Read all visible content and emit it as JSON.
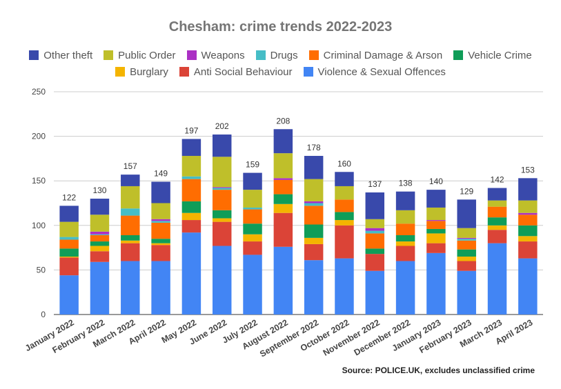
{
  "chart_data": {
    "type": "bar",
    "stacked": true,
    "title": "Chesham: crime trends 2022-2023",
    "categories": [
      "January 2022",
      "February 2022",
      "March 2022",
      "April 2022",
      "May 2022",
      "June 2022",
      "July 2022",
      "August 2022",
      "September 2022",
      "October 2022",
      "November 2022",
      "December 2022",
      "January 2023",
      "February 2023",
      "March 2023",
      "April 2023"
    ],
    "ylim": [
      0,
      250
    ],
    "yticks": [
      "0",
      "50",
      "100",
      "150",
      "200",
      "250"
    ],
    "grid": true,
    "legend_position": "top",
    "totals": [
      122,
      130,
      157,
      149,
      197,
      202,
      159,
      208,
      178,
      160,
      137,
      138,
      140,
      129,
      142,
      153
    ],
    "series": [
      {
        "name": "Violence & Sexual Offences",
        "color": "#4285f4",
        "values": [
          44,
          59,
          60,
          60,
          92,
          77,
          67,
          76,
          61,
          63,
          49,
          60,
          69,
          49,
          80,
          63
        ]
      },
      {
        "name": "Anti Social Behaviour",
        "color": "#db4437",
        "values": [
          20,
          12,
          20,
          18,
          14,
          27,
          15,
          38,
          18,
          37,
          19,
          17,
          11,
          11,
          15,
          19
        ]
      },
      {
        "name": "Burglary",
        "color": "#f4b400",
        "values": [
          1,
          6,
          3,
          2,
          8,
          4,
          8,
          10,
          7,
          6,
          0,
          5,
          11,
          5,
          5,
          6
        ]
      },
      {
        "name": "Vehicle Crime",
        "color": "#0f9d58",
        "values": [
          9,
          5,
          6,
          5,
          13,
          9,
          12,
          11,
          15,
          9,
          6,
          7,
          5,
          8,
          9,
          12
        ]
      },
      {
        "name": "Criminal Damage & Arson",
        "color": "#ff6d01",
        "values": [
          10,
          7,
          22,
          18,
          25,
          23,
          16,
          16,
          21,
          14,
          17,
          13,
          9,
          10,
          12,
          12
        ]
      },
      {
        "name": "Drugs",
        "color": "#46bdc6",
        "values": [
          3,
          1,
          8,
          2,
          3,
          2,
          2,
          0,
          3,
          0,
          3,
          0,
          0,
          2,
          0,
          0
        ]
      },
      {
        "name": "Weapons",
        "color": "#ab30c4",
        "values": [
          0,
          3,
          0,
          2,
          0,
          1,
          0,
          2,
          2,
          0,
          3,
          0,
          1,
          1,
          0,
          2
        ]
      },
      {
        "name": "Public Order",
        "color": "#bfbf2a",
        "values": [
          17,
          19,
          25,
          18,
          23,
          34,
          20,
          28,
          25,
          15,
          10,
          15,
          14,
          11,
          7,
          14
        ]
      },
      {
        "name": "Other theft",
        "color": "#3949ab",
        "values": [
          18,
          18,
          13,
          24,
          19,
          25,
          19,
          27,
          26,
          16,
          30,
          21,
          20,
          32,
          14,
          25
        ]
      }
    ]
  },
  "legend": {
    "rows": [
      [
        "Other theft",
        "Public Order",
        "Weapons",
        "Drugs",
        "Criminal Damage & Arson",
        "Vehicle Crime"
      ],
      [
        "Burglary",
        "Anti Social Behaviour",
        "Violence & Sexual Offences"
      ]
    ]
  },
  "source_note": "Source: POLICE.UK, excludes unclassified crime"
}
